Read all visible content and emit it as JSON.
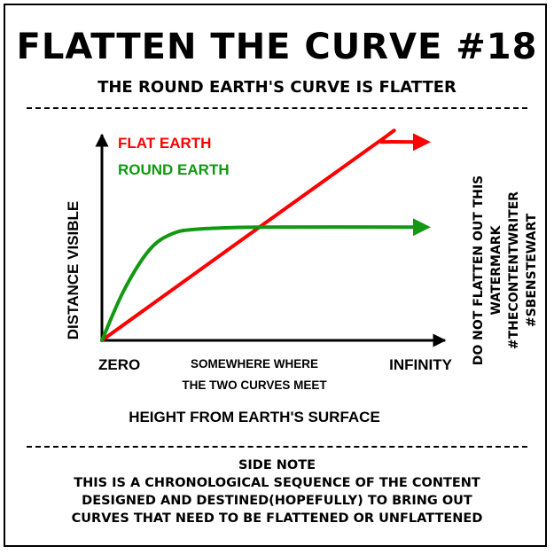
{
  "title": "FLATTEN THE CURVE #18",
  "subtitle": "THE ROUND EARTH'S CURVE IS FLATTER",
  "watermark": {
    "line1": "DO NOT FLATTEN OUT THIS WATERMARK",
    "line2": "#THECONTENTWRITER #SBENSTEWART"
  },
  "side_note": {
    "heading": "SIDE NOTE",
    "lines": [
      "THIS IS A CHRONOLOGICAL SEQUENCE OF THE CONTENT",
      "DESIGNED AND DESTINED(HOPEFULLY) TO BRING OUT",
      "CURVES THAT NEED TO BE FLATTENED OR UNFLATTENED"
    ]
  },
  "chart_data": {
    "type": "line",
    "xlabel": "HEIGHT FROM EARTH'S SURFACE",
    "ylabel": "DISTANCE VISIBLE",
    "x_ticks": {
      "start": "ZERO",
      "middle_line1": "SOMEWHERE WHERE",
      "middle_line2": "THE TWO CURVES MEET",
      "end": "INFINITY"
    },
    "xlim": [
      0,
      100
    ],
    "ylim": [
      0,
      100
    ],
    "legend_position": "top-left",
    "grid": false,
    "series": [
      {
        "name": "FLAT EARTH",
        "color": "#ff0000",
        "points": [
          [
            0,
            0
          ],
          [
            86,
            97
          ],
          [
            89,
            99
          ],
          [
            100,
            99
          ]
        ]
      },
      {
        "name": "ROUND EARTH",
        "color": "#119911",
        "points": [
          [
            0,
            0
          ],
          [
            7,
            25
          ],
          [
            15,
            45
          ],
          [
            22,
            53
          ],
          [
            30,
            55.5
          ],
          [
            50,
            56.5
          ],
          [
            100,
            56.5
          ]
        ]
      }
    ]
  }
}
